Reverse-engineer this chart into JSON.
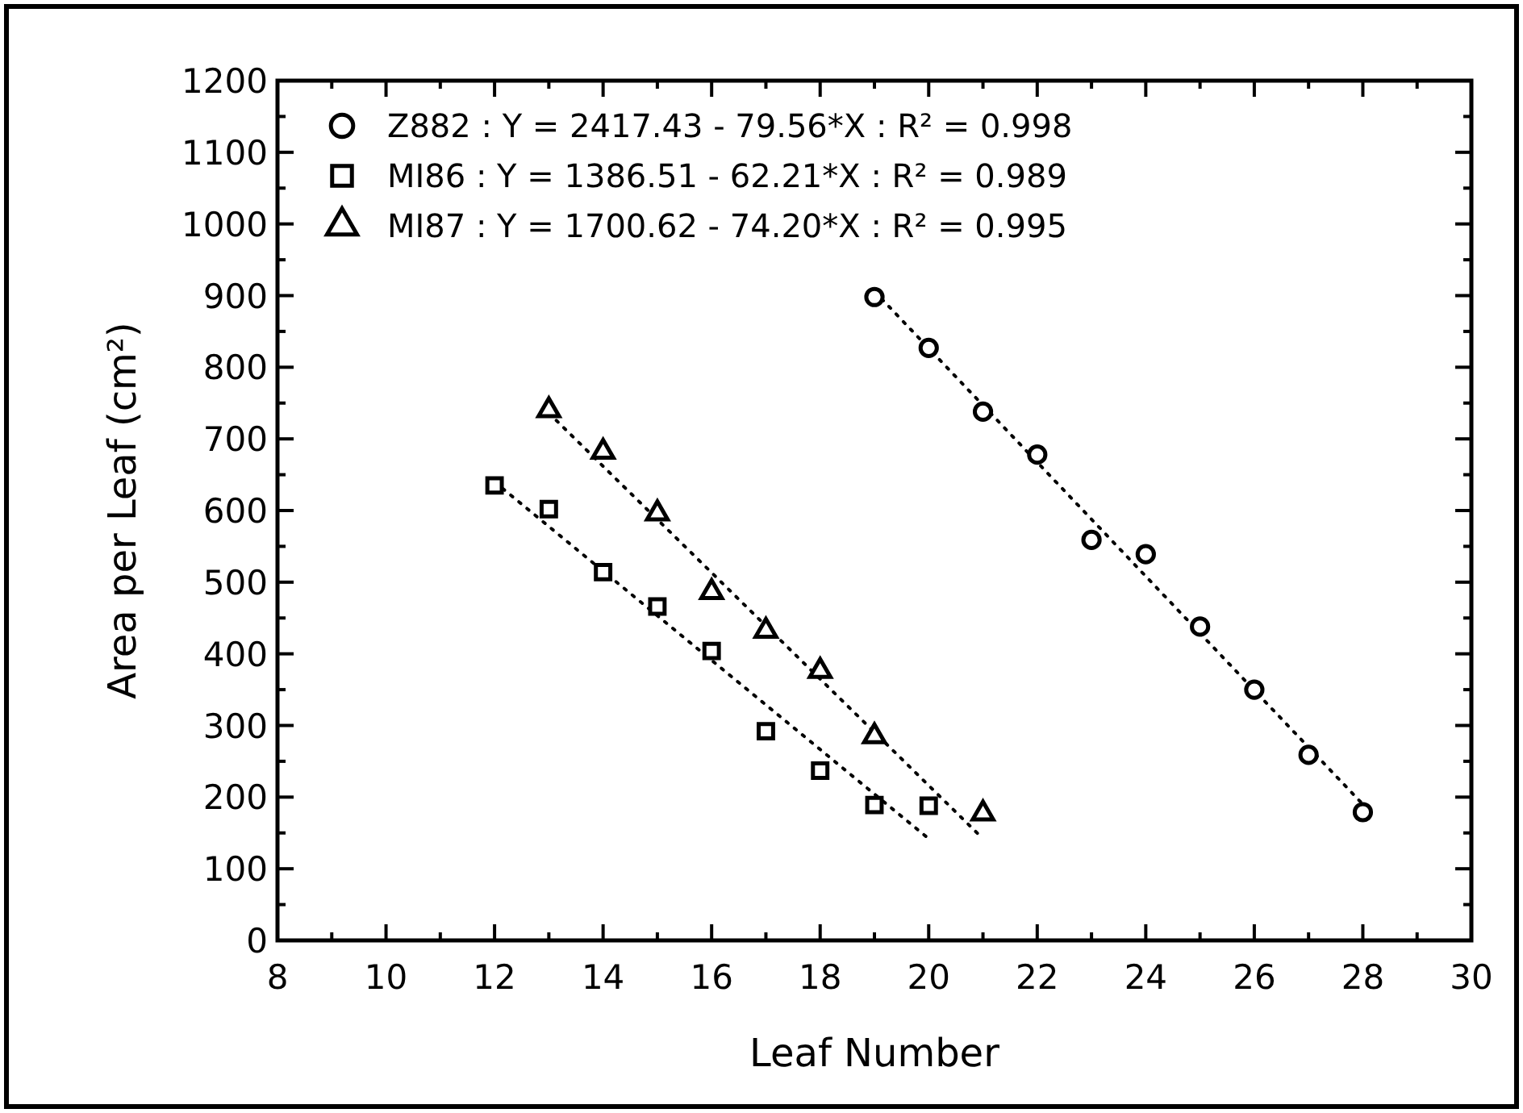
{
  "chart_data": {
    "type": "scatter",
    "xlabel": "Leaf Number",
    "ylabel": "Area per Leaf (cm²)",
    "xlim": [
      8,
      30
    ],
    "ylim": [
      0,
      1200
    ],
    "xticks": [
      8,
      {
        "value": 9,
        "label": null
      },
      10,
      {
        "value": 11,
        "label": null
      },
      12,
      {
        "value": 13,
        "label": null
      },
      14,
      {
        "value": 15,
        "label": null
      },
      16,
      {
        "value": 17,
        "label": null
      },
      18,
      {
        "value": 19,
        "label": null
      },
      20,
      {
        "value": 21,
        "label": null
      },
      22,
      {
        "value": 23,
        "label": null
      },
      24,
      {
        "value": 25,
        "label": null
      },
      26,
      {
        "value": 27,
        "label": null
      },
      28,
      {
        "value": 29,
        "label": null
      },
      30
    ],
    "yticks": [
      0,
      {
        "value": 50,
        "label": null
      },
      100,
      {
        "value": 150,
        "label": null
      },
      200,
      {
        "value": 250,
        "label": null
      },
      300,
      {
        "value": 350,
        "label": null
      },
      400,
      {
        "value": 450,
        "label": null
      },
      500,
      {
        "value": 550,
        "label": null
      },
      600,
      {
        "value": 650,
        "label": null
      },
      700,
      {
        "value": 750,
        "label": null
      },
      800,
      {
        "value": 850,
        "label": null
      },
      900,
      {
        "value": 950,
        "label": null
      },
      1000,
      {
        "value": 1050,
        "label": null
      },
      1100,
      {
        "value": 1150,
        "label": null
      },
      1200
    ],
    "grid": false,
    "legend": "top left",
    "series": [
      {
        "name": "Z882 : Y = 2417.43 - 79.56*X : R² = 0.998",
        "color": "#000000",
        "marker": "circle",
        "x": [
          19,
          20,
          21,
          22,
          23,
          24,
          25,
          26,
          27,
          28
        ],
        "values": [
          898,
          827,
          738,
          678,
          559,
          539,
          438,
          350,
          259,
          179
        ]
      },
      {
        "name": "MI86 : Y = 1386.51 - 62.21*X : R² = 0.989",
        "color": "#000000",
        "marker": "square",
        "x": [
          12,
          13,
          14,
          15,
          16,
          17,
          18,
          19,
          20
        ],
        "values": [
          635,
          602,
          514,
          466,
          404,
          292,
          237,
          189,
          188
        ]
      },
      {
        "name": "MI87 : Y = 1700.62 - 74.20*X : R² = 0.995",
        "color": "#000000",
        "marker": "triangle",
        "x": [
          13,
          14,
          15,
          16,
          17,
          18,
          19,
          21
        ],
        "values": [
          740,
          682,
          596,
          486,
          432,
          376,
          285,
          177
        ]
      },
      {
        "type": "line",
        "color": "#000000",
        "line_style": "dotted",
        "x": [
          19,
          28
        ],
        "values": [
          906,
          190
        ]
      },
      {
        "type": "line",
        "color": "#000000",
        "line_style": "dotted",
        "x": [
          12,
          20
        ],
        "values": [
          640,
          142
        ]
      },
      {
        "type": "line",
        "color": "#000000",
        "line_style": "dotted",
        "x": [
          13,
          21
        ],
        "values": [
          736,
          142
        ]
      }
    ]
  }
}
